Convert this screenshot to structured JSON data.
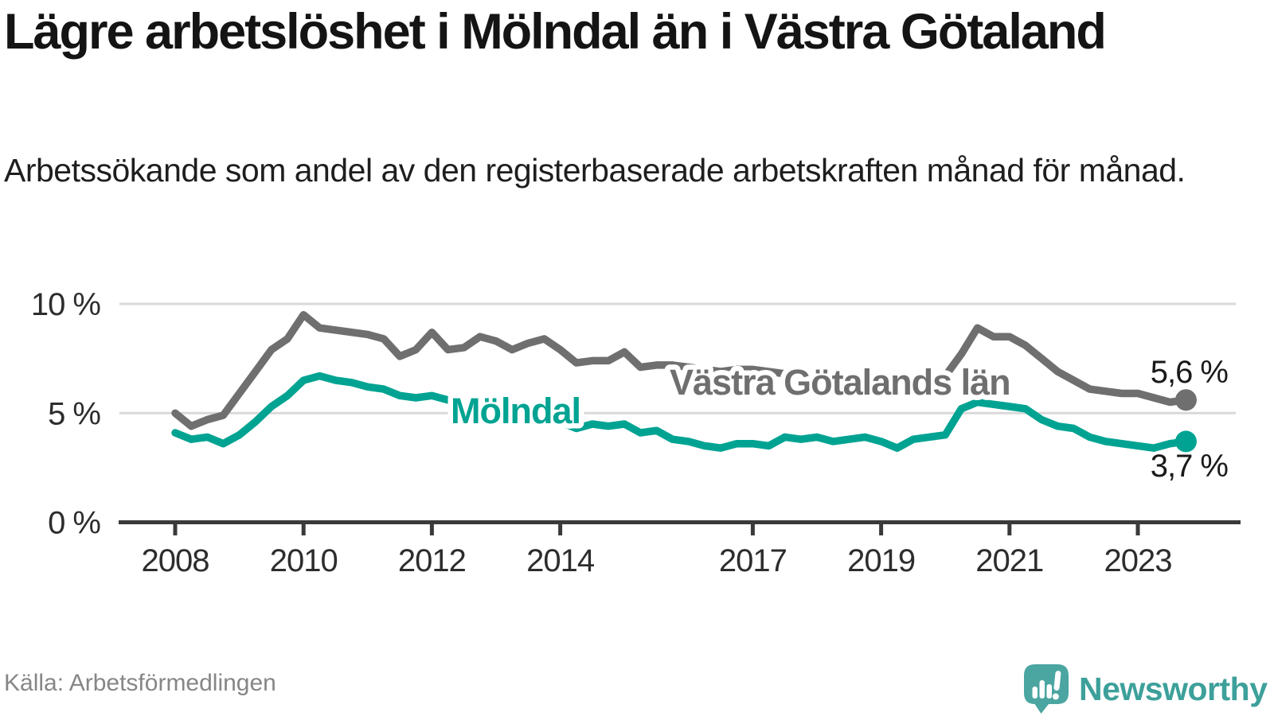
{
  "header": {
    "title": "Lägre arbetslöshet i Mölndal än i Västra Götaland",
    "subtitle": "Arbetssökande som andel av den registerbaserade arbetskraften månad för månad."
  },
  "footer": {
    "source": "Källa: Arbetsförmedlingen",
    "brand": "Newsworthy"
  },
  "colors": {
    "vastra_gotaland_line": "#6f6f6f",
    "molndal_line": "#00a392",
    "gridline": "#d9d9d9",
    "axis": "#3a3a3a",
    "logo_teal": "#4ba5a1",
    "brand_text": "#3da09a"
  },
  "chart_data": {
    "type": "line",
    "title": "Lägre arbetslöshet i Mölndal än i Västra Götaland",
    "xlabel": "",
    "ylabel": "Arbetssökande som andel av den registerbaserade arbetskraften",
    "grid": "horizontal",
    "legend_position": "inline-labels",
    "xlim": [
      2007.1,
      2024.5
    ],
    "ylim": [
      0,
      11
    ],
    "x": [
      2008.0,
      2008.25,
      2008.5,
      2008.75,
      2009.0,
      2009.25,
      2009.5,
      2009.75,
      2010.0,
      2010.25,
      2010.5,
      2010.75,
      2011.0,
      2011.25,
      2011.5,
      2011.75,
      2012.0,
      2012.25,
      2012.5,
      2012.75,
      2013.0,
      2013.25,
      2013.5,
      2013.75,
      2014.0,
      2014.25,
      2014.5,
      2014.75,
      2015.0,
      2015.25,
      2015.5,
      2015.75,
      2016.0,
      2016.25,
      2016.5,
      2016.75,
      2017.0,
      2017.25,
      2017.5,
      2017.75,
      2018.0,
      2018.25,
      2018.5,
      2018.75,
      2019.0,
      2019.25,
      2019.5,
      2019.75,
      2020.0,
      2020.25,
      2020.5,
      2020.75,
      2021.0,
      2021.25,
      2021.5,
      2021.75,
      2022.0,
      2022.25,
      2022.5,
      2022.75,
      2023.0,
      2023.25,
      2023.5,
      2023.75
    ],
    "series": [
      {
        "name": "Västra Götalands län",
        "color": "#6f6f6f",
        "end_label": "5,6 %",
        "end_value": 5.6,
        "values": [
          5.0,
          4.4,
          4.7,
          4.9,
          5.9,
          6.9,
          7.9,
          8.4,
          9.5,
          8.9,
          8.8,
          8.7,
          8.6,
          8.4,
          7.6,
          7.9,
          8.7,
          7.9,
          8.0,
          8.5,
          8.3,
          7.9,
          8.2,
          8.4,
          7.9,
          7.3,
          7.4,
          7.4,
          7.8,
          7.1,
          7.2,
          7.2,
          7.1,
          7.0,
          6.9,
          7.0,
          7.0,
          6.9,
          6.8,
          6.7,
          6.7,
          6.6,
          6.6,
          6.7,
          6.6,
          6.5,
          6.5,
          6.6,
          6.7,
          7.7,
          8.9,
          8.5,
          8.5,
          8.1,
          7.5,
          6.9,
          6.5,
          6.1,
          6.0,
          5.9,
          5.9,
          5.7,
          5.5,
          5.6
        ]
      },
      {
        "name": "Mölndal",
        "color": "#00a392",
        "end_label": "3,7 %",
        "end_value": 3.7,
        "values": [
          4.1,
          3.8,
          3.9,
          3.6,
          4.0,
          4.6,
          5.3,
          5.8,
          6.5,
          6.7,
          6.5,
          6.4,
          6.2,
          6.1,
          5.8,
          5.7,
          5.8,
          5.6,
          5.5,
          5.4,
          5.3,
          5.2,
          5.0,
          4.8,
          4.6,
          4.3,
          4.5,
          4.4,
          4.5,
          4.1,
          4.2,
          3.8,
          3.7,
          3.5,
          3.4,
          3.6,
          3.6,
          3.5,
          3.9,
          3.8,
          3.9,
          3.7,
          3.8,
          3.9,
          3.7,
          3.4,
          3.8,
          3.9,
          4.0,
          5.2,
          5.5,
          5.4,
          5.3,
          5.2,
          4.7,
          4.4,
          4.3,
          3.9,
          3.7,
          3.6,
          3.5,
          3.4,
          3.6,
          3.7
        ]
      }
    ],
    "xticks": [
      {
        "value": 2008,
        "label": "2008"
      },
      {
        "value": 2010,
        "label": "2010"
      },
      {
        "value": 2012,
        "label": "2012"
      },
      {
        "value": 2014,
        "label": "2014"
      },
      {
        "value": 2017,
        "label": "2017"
      },
      {
        "value": 2019,
        "label": "2019"
      },
      {
        "value": 2021,
        "label": "2021"
      },
      {
        "value": 2023,
        "label": "2023"
      }
    ],
    "yticks": [
      {
        "value": 0,
        "label": "0 %"
      },
      {
        "value": 5,
        "label": "5 %"
      },
      {
        "value": 10,
        "label": "10 %"
      }
    ]
  }
}
